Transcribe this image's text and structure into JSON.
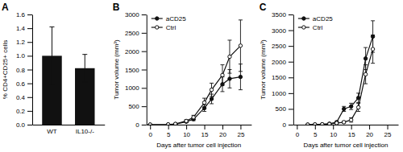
{
  "chart_data": [
    {
      "type": "bar",
      "title": "A",
      "categories": [
        "WT",
        "IL10-/-"
      ],
      "values": [
        1.0,
        0.82
      ],
      "errors": [
        0.42,
        0.2
      ],
      "color": "#111111",
      "y_label": "% CD4+CD25+ cells",
      "ylim": [
        0,
        1.6
      ],
      "yticks": [
        {
          "value": 0,
          "label": "0.0"
        },
        0.2,
        0.4,
        0.6,
        0.8,
        {
          "value": 1.0,
          "label": "1.0"
        },
        1.2,
        1.4,
        1.6
      ]
    },
    {
      "type": "line",
      "title": "B",
      "x": [
        0,
        5,
        7,
        10,
        12,
        15,
        17,
        20,
        22,
        25
      ],
      "series": [
        {
          "name": "aCD25",
          "color": "#111111",
          "marker": "circle",
          "values": [
            0,
            5,
            15,
            80,
            150,
            450,
            700,
            1100,
            1250,
            1300
          ],
          "errors": [
            0,
            4,
            8,
            25,
            40,
            90,
            130,
            200,
            250,
            350
          ]
        },
        {
          "name": "Ctrl",
          "color": "#111111",
          "marker": "open-circle",
          "values": [
            0,
            5,
            20,
            100,
            200,
            600,
            950,
            1350,
            1850,
            2150
          ],
          "errors": [
            0,
            4,
            10,
            35,
            55,
            120,
            180,
            280,
            450,
            700
          ]
        }
      ],
      "x_label": "Days after tumor cell injection",
      "y_label": "Tumor volume (mm³)",
      "xlim": [
        -1,
        28
      ],
      "xticks": [
        0,
        5,
        10,
        15,
        20,
        25
      ],
      "ylim": [
        0,
        3000
      ],
      "yticks": [
        0,
        500,
        1000,
        1500,
        2000,
        2500,
        3000
      ],
      "legend": "upper-left"
    },
    {
      "type": "line",
      "title": "C",
      "x": [
        3,
        5,
        7,
        9,
        11,
        13,
        15,
        17,
        19,
        21
      ],
      "series": [
        {
          "name": "aCD25",
          "color": "#111111",
          "marker": "circle",
          "values": [
            0,
            5,
            10,
            30,
            80,
            500,
            580,
            850,
            2100,
            2800
          ],
          "errors": [
            0,
            4,
            6,
            12,
            25,
            80,
            100,
            150,
            350,
            500
          ]
        },
        {
          "name": "Ctrl",
          "color": "#111111",
          "marker": "open-circle",
          "values": [
            0,
            5,
            10,
            20,
            50,
            80,
            150,
            550,
            1600,
            2400
          ],
          "errors": [
            0,
            4,
            6,
            10,
            20,
            35,
            70,
            130,
            300,
            450
          ]
        }
      ],
      "x_label": "Days after tumor cell injection",
      "y_label": "Tumor volume (mm³)",
      "xlim": [
        -1,
        28
      ],
      "xticks": [
        0,
        5,
        10,
        15,
        20,
        25
      ],
      "ylim": [
        0,
        3500
      ],
      "yticks": [
        0,
        500,
        1000,
        1500,
        2000,
        2500,
        3000,
        3500
      ],
      "legend": "upper-left"
    }
  ]
}
